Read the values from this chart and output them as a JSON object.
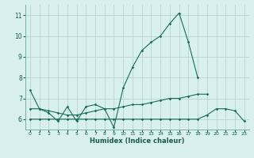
{
  "title": "",
  "xlabel": "Humidex (Indice chaleur)",
  "bg_color": "#d8f0ee",
  "line_color": "#1a6b5a",
  "grid_color": "#b8d4d0",
  "x_values": [
    0,
    1,
    2,
    3,
    4,
    5,
    6,
    7,
    8,
    9,
    10,
    11,
    12,
    13,
    14,
    15,
    16,
    17,
    18,
    19,
    20,
    21,
    22,
    23
  ],
  "line1": [
    7.4,
    6.5,
    6.3,
    5.9,
    6.6,
    5.9,
    6.6,
    6.7,
    6.5,
    5.6,
    7.5,
    8.5,
    9.3,
    9.7,
    10.0,
    10.6,
    11.1,
    9.7,
    8.0,
    null,
    null,
    null,
    null,
    null
  ],
  "line2": [
    6.5,
    6.5,
    6.4,
    6.3,
    6.2,
    6.2,
    6.3,
    6.4,
    6.5,
    6.5,
    6.6,
    6.7,
    6.7,
    6.8,
    6.9,
    7.0,
    7.0,
    7.1,
    7.2,
    7.2,
    null,
    null,
    null,
    null
  ],
  "line3": [
    6.0,
    6.0,
    6.0,
    6.0,
    6.0,
    6.0,
    6.0,
    6.0,
    6.0,
    6.0,
    6.0,
    6.0,
    6.0,
    6.0,
    6.0,
    6.0,
    6.0,
    6.0,
    6.0,
    6.2,
    6.5,
    6.5,
    6.4,
    5.9
  ],
  "ylim": [
    5.5,
    11.5
  ],
  "yticks": [
    6,
    7,
    8,
    9,
    10,
    11
  ],
  "xlim": [
    -0.5,
    23.5
  ],
  "xticks": [
    0,
    1,
    2,
    3,
    4,
    5,
    6,
    7,
    8,
    9,
    10,
    11,
    12,
    13,
    14,
    15,
    16,
    17,
    18,
    19,
    20,
    21,
    22,
    23
  ]
}
